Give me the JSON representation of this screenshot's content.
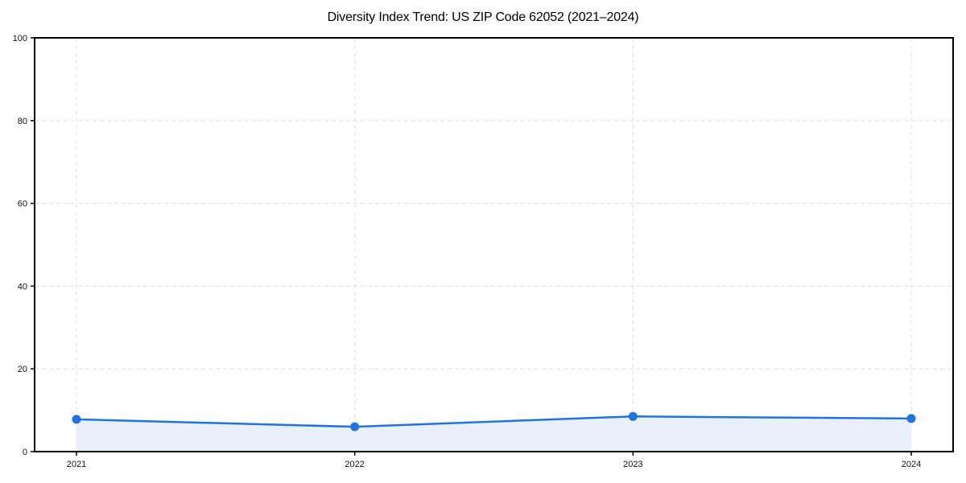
{
  "chart": {
    "title": "Diversity Index Trend: US ZIP Code 62052 (2021–2024)"
  },
  "chart_data": {
    "type": "line",
    "categories": [
      "2021",
      "2022",
      "2023",
      "2024"
    ],
    "values": [
      7.8,
      6.0,
      8.5,
      8.0
    ],
    "title": "Diversity Index Trend: US ZIP Code 62052 (2021–2024)",
    "xlabel": "",
    "ylabel": "",
    "ylim": [
      0,
      100
    ],
    "yticks": [
      0,
      20,
      40,
      60,
      80,
      100
    ],
    "grid": true,
    "legend": "none",
    "area_fill": true,
    "colors": {
      "line": "#2273e0",
      "marker": "#2273e0",
      "area": "#e9f0fc",
      "grid": "#e0e0e0",
      "axis": "#000000",
      "text": "#111111",
      "background": "#ffffff"
    }
  }
}
